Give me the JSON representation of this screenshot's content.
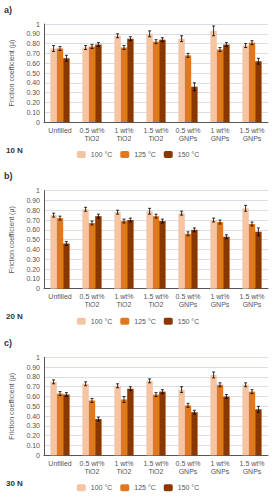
{
  "chart_data": [
    {
      "type": "bar",
      "title": "a)",
      "annotations": [
        "10 N"
      ],
      "ylabel": "Friction coefficient (μ)",
      "categories": [
        "Unfilled",
        "0.5 wt%\nTiO2",
        "1 wt%\nTiO2",
        "1.5 wt%\nTiO2",
        "0.5 wt%\nGNPs",
        "1 wt%\nGNPs",
        "1.5 wt%\nGNPs"
      ],
      "series": [
        {
          "name": "100 °C",
          "color": "#f5c5a3",
          "values": [
            0.75,
            0.76,
            0.88,
            0.9,
            0.85,
            0.93,
            0.78
          ],
          "errors": [
            0.03,
            0.02,
            0.02,
            0.03,
            0.03,
            0.05,
            0.02
          ]
        },
        {
          "name": "125 °C",
          "color": "#e07820",
          "values": [
            0.75,
            0.77,
            0.76,
            0.82,
            0.68,
            0.74,
            0.81
          ],
          "errors": [
            0.02,
            0.02,
            0.02,
            0.02,
            0.02,
            0.02,
            0.02
          ]
        },
        {
          "name": "150 °C",
          "color": "#8b3800",
          "values": [
            0.65,
            0.79,
            0.85,
            0.84,
            0.36,
            0.79,
            0.62
          ],
          "errors": [
            0.03,
            0.02,
            0.02,
            0.02,
            0.04,
            0.02,
            0.03
          ]
        }
      ],
      "ylim": [
        0,
        1.0
      ],
      "yticks": [
        0,
        {
          "value": 0.1,
          "label": "0.10"
        },
        {
          "value": 0.2,
          "label": "0.20"
        },
        {
          "value": 0.3,
          "label": "0.30"
        },
        {
          "value": 0.4,
          "label": "0.40"
        },
        {
          "value": 0.5,
          "label": "0.50"
        },
        {
          "value": 0.6,
          "label": "0.60"
        },
        {
          "value": 0.7,
          "label": "0.70"
        },
        {
          "value": 0.8,
          "label": "0.80"
        },
        {
          "value": 0.9,
          "label": "0.90"
        },
        1
      ],
      "grid": true,
      "legend": "bottom"
    },
    {
      "type": "bar",
      "title": "b)",
      "annotations": [
        "20 N"
      ],
      "ylabel": "Friction coefficient (μ)",
      "categories": [
        "Unfilled",
        "0.5 wt%\nTiO2",
        "1 wt%\nTiO2",
        "1.5 wt%\nTiO2",
        "0.5 wt%\nGNPs",
        "1 wt%\nGNPs",
        "1.5 wt%\nGNPs"
      ],
      "series": [
        {
          "name": "100 °C",
          "color": "#f5c5a3",
          "values": [
            0.75,
            0.81,
            0.78,
            0.79,
            0.77,
            0.7,
            0.82
          ],
          "errors": [
            0.02,
            0.02,
            0.02,
            0.03,
            0.02,
            0.02,
            0.03
          ]
        },
        {
          "name": "125 °C",
          "color": "#e07820",
          "values": [
            0.72,
            0.67,
            0.69,
            0.74,
            0.56,
            0.68,
            0.66
          ],
          "errors": [
            0.02,
            0.02,
            0.02,
            0.02,
            0.02,
            0.02,
            0.02
          ]
        },
        {
          "name": "150 °C",
          "color": "#8b3800",
          "values": [
            0.46,
            0.74,
            0.7,
            0.69,
            0.6,
            0.53,
            0.58
          ],
          "errors": [
            0.02,
            0.02,
            0.02,
            0.02,
            0.02,
            0.02,
            0.04
          ]
        }
      ],
      "ylim": [
        0,
        1.0
      ],
      "yticks": [
        0,
        {
          "value": 0.1,
          "label": "0.10"
        },
        {
          "value": 0.2,
          "label": "0.20"
        },
        {
          "value": 0.3,
          "label": "0.30"
        },
        {
          "value": 0.4,
          "label": "0.40"
        },
        {
          "value": 0.5,
          "label": "0.50"
        },
        {
          "value": 0.6,
          "label": "0.60"
        },
        {
          "value": 0.7,
          "label": "0.70"
        },
        {
          "value": 0.8,
          "label": "0.80"
        },
        {
          "value": 0.9,
          "label": "0.90"
        },
        1
      ],
      "grid": true,
      "legend": "bottom"
    },
    {
      "type": "bar",
      "title": "c)",
      "annotations": [
        "30 N"
      ],
      "ylabel": "Friction coefficient (μ)",
      "categories": [
        "Unfilled",
        "0.5 wt%\nTiO2",
        "1 wt%\nTiO2",
        "1.5 wt%\nTiO2",
        "0.5 wt%\nGNPs",
        "1 wt%\nGNPs",
        "1.5 wt%\nGNPs"
      ],
      "series": [
        {
          "name": "100 °C",
          "color": "#f5c5a3",
          "values": [
            0.75,
            0.73,
            0.71,
            0.76,
            0.67,
            0.82,
            0.72
          ],
          "errors": [
            0.02,
            0.02,
            0.02,
            0.02,
            0.03,
            0.03,
            0.02
          ]
        },
        {
          "name": "125 °C",
          "color": "#e07820",
          "values": [
            0.63,
            0.56,
            0.57,
            0.62,
            0.51,
            0.72,
            0.65
          ],
          "errors": [
            0.02,
            0.02,
            0.03,
            0.02,
            0.02,
            0.02,
            0.02
          ]
        },
        {
          "name": "150 °C",
          "color": "#8b3800",
          "values": [
            0.62,
            0.37,
            0.68,
            0.65,
            0.44,
            0.6,
            0.47
          ],
          "errors": [
            0.02,
            0.02,
            0.02,
            0.02,
            0.02,
            0.02,
            0.03
          ]
        }
      ],
      "ylim": [
        0,
        1.0
      ],
      "yticks": [
        0,
        {
          "value": 0.1,
          "label": "0.10"
        },
        {
          "value": 0.2,
          "label": "0.20"
        },
        {
          "value": 0.3,
          "label": "0.30"
        },
        {
          "value": 0.4,
          "label": "0.40"
        },
        {
          "value": 0.5,
          "label": "0.50"
        },
        {
          "value": 0.6,
          "label": "0.60"
        },
        {
          "value": 0.7,
          "label": "0.70"
        },
        {
          "value": 0.8,
          "label": "0.80"
        },
        {
          "value": 0.9,
          "label": "0.90"
        },
        1
      ],
      "grid": true,
      "legend": "bottom"
    }
  ]
}
